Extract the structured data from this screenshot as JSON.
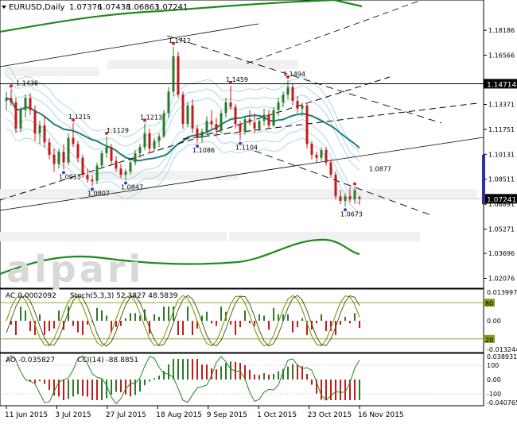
{
  "chart_data": {
    "type": "candlestick",
    "symbol": "EURUSD",
    "timeframe": "Daily",
    "header": {
      "symbol_label": "EURUSD,Daily",
      "open": "1.07376",
      "high": "1.07438",
      "low": "1.06863",
      "close": "1.07241"
    },
    "watermark": "alpari",
    "main": {
      "ylim": [
        1.0169,
        1.1912
      ],
      "price_ticks": [
        "1.18186",
        "1.16566",
        "1.14714",
        "1.13371",
        "1.11751",
        "1.10131",
        "1.08511",
        "1.07241",
        "1.06891",
        "1.05271",
        "1.03696",
        "1.02076"
      ],
      "current_price": 1.07241,
      "current_price_label": "1.07241",
      "resistance_line": 1.14714,
      "resistance_label": "1.14714",
      "annotations": [
        {
          "text": "1.1436",
          "x": 3,
          "y": 1.1436
        },
        {
          "text": "1.1712",
          "x": 35,
          "y": 1.1712
        },
        {
          "text": "1.1459",
          "x": 47,
          "y": 1.1459
        },
        {
          "text": "1.1494",
          "x": 59,
          "y": 1.1494
        },
        {
          "text": "1.1215",
          "x": 14,
          "y": 1.1215
        },
        {
          "text": "1.1129",
          "x": 22,
          "y": 1.1129
        },
        {
          "text": "1.1213",
          "x": 29,
          "y": 1.1213
        },
        {
          "text": "1.1086",
          "x": 40,
          "y": 1.1086
        },
        {
          "text": "1.1104",
          "x": 49,
          "y": 1.1104
        },
        {
          "text": "1.0915",
          "x": 12,
          "y": 1.0915
        },
        {
          "text": "1.0807",
          "x": 18,
          "y": 1.0807
        },
        {
          "text": "1.0847",
          "x": 25,
          "y": 1.0847
        },
        {
          "text": "1.0877",
          "x": 77,
          "y": 1.0877
        },
        {
          "text": "1.0673",
          "x": 71,
          "y": 1.0673
        }
      ],
      "candles": [
        [
          1.136,
          1.142,
          1.13,
          1.138
        ],
        [
          1.138,
          1.1436,
          1.133,
          1.135
        ],
        [
          1.135,
          1.138,
          1.115,
          1.118
        ],
        [
          1.118,
          1.132,
          1.116,
          1.13
        ],
        [
          1.13,
          1.14,
          1.125,
          1.138
        ],
        [
          1.138,
          1.141,
          1.127,
          1.13
        ],
        [
          1.13,
          1.133,
          1.11,
          1.115
        ],
        [
          1.115,
          1.123,
          1.108,
          1.12
        ],
        [
          1.12,
          1.126,
          1.106,
          1.109
        ],
        [
          1.109,
          1.112,
          1.098,
          1.101
        ],
        [
          1.101,
          1.105,
          1.09,
          1.095
        ],
        [
          1.095,
          1.105,
          1.092,
          1.103
        ],
        [
          1.103,
          1.108,
          1.0915,
          1.096
        ],
        [
          1.096,
          1.115,
          1.094,
          1.112
        ],
        [
          1.112,
          1.1215,
          1.106,
          1.108
        ],
        [
          1.108,
          1.11,
          1.096,
          1.099
        ],
        [
          1.099,
          1.101,
          1.086,
          1.088
        ],
        [
          1.088,
          1.092,
          1.083,
          1.085
        ],
        [
          1.085,
          1.088,
          1.0807,
          1.084
        ],
        [
          1.084,
          1.096,
          1.082,
          1.094
        ],
        [
          1.094,
          1.104,
          1.092,
          1.102
        ],
        [
          1.102,
          1.1129,
          1.099,
          1.106
        ],
        [
          1.106,
          1.108,
          1.095,
          1.097
        ],
        [
          1.097,
          1.1,
          1.09,
          1.092
        ],
        [
          1.092,
          1.095,
          1.086,
          1.088
        ],
        [
          1.088,
          1.092,
          1.0847,
          1.09
        ],
        [
          1.09,
          1.098,
          1.088,
          1.096
        ],
        [
          1.096,
          1.104,
          1.094,
          1.102
        ],
        [
          1.102,
          1.108,
          1.099,
          1.106
        ],
        [
          1.106,
          1.1213,
          1.104,
          1.115
        ],
        [
          1.115,
          1.118,
          1.102,
          1.105
        ],
        [
          1.105,
          1.112,
          1.103,
          1.11
        ],
        [
          1.11,
          1.115,
          1.106,
          1.113
        ],
        [
          1.113,
          1.13,
          1.112,
          1.128
        ],
        [
          1.128,
          1.145,
          1.125,
          1.142
        ],
        [
          1.142,
          1.1712,
          1.139,
          1.165
        ],
        [
          1.165,
          1.168,
          1.138,
          1.14
        ],
        [
          1.14,
          1.142,
          1.118,
          1.121
        ],
        [
          1.121,
          1.135,
          1.119,
          1.133
        ],
        [
          1.133,
          1.137,
          1.115,
          1.118
        ],
        [
          1.118,
          1.12,
          1.1086,
          1.112
        ],
        [
          1.112,
          1.118,
          1.109,
          1.116
        ],
        [
          1.116,
          1.126,
          1.114,
          1.123
        ],
        [
          1.123,
          1.13,
          1.118,
          1.121
        ],
        [
          1.121,
          1.125,
          1.113,
          1.117
        ],
        [
          1.117,
          1.13,
          1.115,
          1.128
        ],
        [
          1.128,
          1.138,
          1.125,
          1.135
        ],
        [
          1.135,
          1.1459,
          1.13,
          1.132
        ],
        [
          1.132,
          1.134,
          1.118,
          1.121
        ],
        [
          1.121,
          1.123,
          1.1104,
          1.116
        ],
        [
          1.116,
          1.126,
          1.114,
          1.124
        ],
        [
          1.124,
          1.13,
          1.12,
          1.122
        ],
        [
          1.122,
          1.128,
          1.115,
          1.118
        ],
        [
          1.118,
          1.125,
          1.116,
          1.123
        ],
        [
          1.123,
          1.131,
          1.12,
          1.127
        ],
        [
          1.127,
          1.13,
          1.118,
          1.12
        ],
        [
          1.12,
          1.132,
          1.119,
          1.13
        ],
        [
          1.13,
          1.138,
          1.126,
          1.135
        ],
        [
          1.135,
          1.142,
          1.132,
          1.14
        ],
        [
          1.14,
          1.1494,
          1.137,
          1.145
        ],
        [
          1.145,
          1.147,
          1.133,
          1.136
        ],
        [
          1.136,
          1.139,
          1.128,
          1.131
        ],
        [
          1.131,
          1.135,
          1.126,
          1.133
        ],
        [
          1.133,
          1.134,
          1.105,
          1.108
        ],
        [
          1.108,
          1.11,
          1.098,
          1.101
        ],
        [
          1.101,
          1.103,
          1.096,
          1.099
        ],
        [
          1.099,
          1.106,
          1.097,
          1.104
        ],
        [
          1.104,
          1.106,
          1.094,
          1.096
        ],
        [
          1.096,
          1.098,
          1.086,
          1.088
        ],
        [
          1.088,
          1.09,
          1.072,
          1.074
        ],
        [
          1.074,
          1.078,
          1.069,
          1.071
        ],
        [
          1.071,
          1.076,
          1.0673,
          1.074
        ],
        [
          1.074,
          1.08,
          1.07,
          1.072
        ],
        [
          1.072,
          1.08,
          1.069,
          1.078
        ],
        [
          1.0737,
          1.0744,
          1.0686,
          1.0724
        ]
      ]
    },
    "ac_panel": {
      "label": "AC 0.0002092",
      "stoch_label": "Stoch(5,3,3) 52.3827 48.5839",
      "ticks": [
        "0.013997",
        "80",
        "0.00",
        "20",
        "-0.013244"
      ],
      "levels": [
        80,
        20
      ]
    },
    "ao_panel": {
      "label": "AO -0.035827",
      "cci_label": "CCI(14) -88.8851",
      "ticks": [
        "0.038931",
        "100",
        "0.00",
        "-100",
        "-0.040765"
      ]
    },
    "x_axis": {
      "labels": [
        "11 Jun 2015",
        "3 Jul 2015",
        "27 Jul 2015",
        "18 Aug 2015",
        "9 Sep 2015",
        "1 Oct 2015",
        "23 Oct 2015",
        "16 Nov 2015"
      ]
    },
    "colors": {
      "bull": "#2a7a2a",
      "bear": "#c41a1a",
      "teal_ma": "#1a8080",
      "green_envelope": "#1e8a1e",
      "soft_band": "#a9d8e8",
      "oscillator": "#8aa020",
      "histogram_up": "#2a7a2a",
      "histogram_down": "#c41a1a",
      "watermark": "#d8d8d8"
    }
  }
}
